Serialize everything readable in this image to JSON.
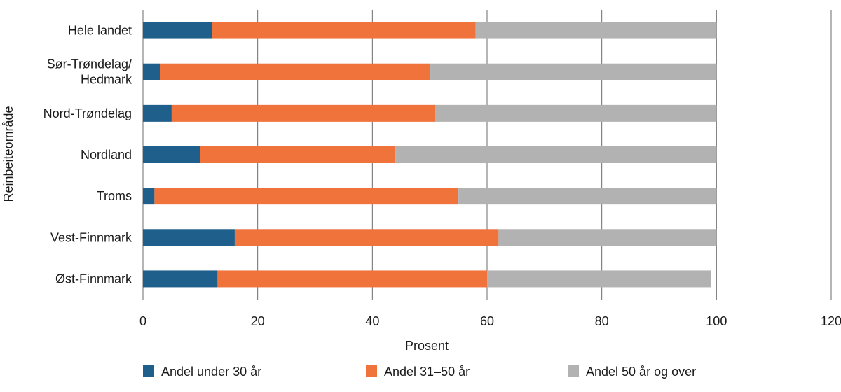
{
  "chart_data": {
    "type": "bar",
    "orientation": "horizontal",
    "stacked": true,
    "categories": [
      "Hele landet",
      "Sør-Trøndelag/\nHedmark",
      "Nord-Trøndelag",
      "Nordland",
      "Troms",
      "Vest-Finnmark",
      "Øst-Finnmark"
    ],
    "series": [
      {
        "name": "Andel under 30 år",
        "color": "#1e5f8b",
        "values": [
          12,
          3,
          5,
          10,
          2,
          16,
          13
        ]
      },
      {
        "name": "Andel 31–50 år",
        "color": "#f0733c",
        "values": [
          46,
          47,
          46,
          34,
          53,
          46,
          47
        ]
      },
      {
        "name": "Andel 50 år og over",
        "color": "#b2b2b2",
        "values": [
          42,
          50,
          49,
          56,
          45,
          38,
          39
        ]
      }
    ],
    "xlabel": "Prosent",
    "ylabel": "Reinbeiteområde",
    "xlim": [
      0,
      120
    ],
    "xticks": [
      0,
      20,
      40,
      60,
      80,
      100,
      120
    ],
    "grid": "vertical",
    "legend": "bottom"
  }
}
